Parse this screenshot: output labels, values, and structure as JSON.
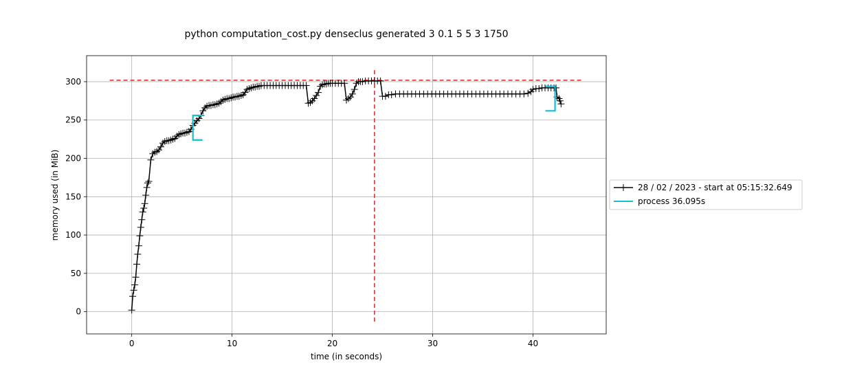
{
  "chart_data": {
    "type": "line",
    "title": "python computation_cost.py denseclus generated 3 0.1 5 5 3 1750",
    "xlabel": "time (in seconds)",
    "ylabel": "memory used (in MiB)",
    "xlim": [
      -4.5,
      47.3
    ],
    "ylim": [
      -29,
      334
    ],
    "xticks": [
      0,
      10,
      20,
      30,
      40
    ],
    "yticks": [
      0,
      50,
      100,
      150,
      200,
      250,
      300
    ],
    "grid": true,
    "legend": {
      "placement": "outside-right",
      "entries": [
        {
          "label": "28 / 02 / 2023 - start at 05:15:32.649",
          "color": "#000000",
          "marker": "+"
        },
        {
          "label": "process 36.095s",
          "color": "#17becf",
          "marker": ""
        }
      ]
    },
    "series": [
      {
        "name": "28 / 02 / 2023 - start at 05:15:32.649",
        "color": "#000000",
        "marker": "+",
        "points": [
          [
            0.0,
            2
          ],
          [
            0.1,
            20
          ],
          [
            0.2,
            28
          ],
          [
            0.3,
            35
          ],
          [
            0.4,
            45
          ],
          [
            0.5,
            62
          ],
          [
            0.6,
            75
          ],
          [
            0.7,
            86
          ],
          [
            0.8,
            99
          ],
          [
            0.9,
            110
          ],
          [
            1.0,
            120
          ],
          [
            1.1,
            130
          ],
          [
            1.2,
            135
          ],
          [
            1.3,
            141
          ],
          [
            1.4,
            152
          ],
          [
            1.5,
            162
          ],
          [
            1.6,
            168
          ],
          [
            1.7,
            170
          ],
          [
            1.9,
            198
          ],
          [
            2.1,
            206
          ],
          [
            2.3,
            208
          ],
          [
            2.5,
            209
          ],
          [
            2.7,
            211
          ],
          [
            2.9,
            215
          ],
          [
            3.1,
            220
          ],
          [
            3.3,
            222
          ],
          [
            3.5,
            223
          ],
          [
            3.7,
            223
          ],
          [
            3.9,
            224
          ],
          [
            4.1,
            225
          ],
          [
            4.3,
            226
          ],
          [
            4.5,
            229
          ],
          [
            4.7,
            231
          ],
          [
            4.9,
            232
          ],
          [
            5.1,
            233
          ],
          [
            5.3,
            233
          ],
          [
            5.5,
            234
          ],
          [
            5.7,
            235
          ],
          [
            5.9,
            238
          ],
          [
            6.1,
            243
          ],
          [
            6.3,
            246
          ],
          [
            6.5,
            249
          ],
          [
            6.7,
            252
          ],
          [
            6.9,
            256
          ],
          [
            7.1,
            262
          ],
          [
            7.3,
            266
          ],
          [
            7.5,
            268
          ],
          [
            7.7,
            269
          ],
          [
            7.9,
            269
          ],
          [
            8.1,
            270
          ],
          [
            8.3,
            270
          ],
          [
            8.5,
            271
          ],
          [
            8.7,
            272
          ],
          [
            8.9,
            274
          ],
          [
            9.1,
            276
          ],
          [
            9.3,
            277
          ],
          [
            9.5,
            278
          ],
          [
            9.7,
            278
          ],
          [
            9.9,
            279
          ],
          [
            10.1,
            280
          ],
          [
            10.3,
            280
          ],
          [
            10.5,
            281
          ],
          [
            10.7,
            281
          ],
          [
            10.9,
            282
          ],
          [
            11.1,
            283
          ],
          [
            11.3,
            286
          ],
          [
            11.5,
            290
          ],
          [
            11.7,
            291
          ],
          [
            11.9,
            292
          ],
          [
            12.1,
            293
          ],
          [
            12.3,
            293
          ],
          [
            12.5,
            294
          ],
          [
            12.7,
            294
          ],
          [
            12.9,
            295
          ],
          [
            13.2,
            295
          ],
          [
            13.5,
            295
          ],
          [
            13.8,
            295
          ],
          [
            14.1,
            295
          ],
          [
            14.4,
            295
          ],
          [
            14.7,
            295
          ],
          [
            15.0,
            295
          ],
          [
            15.3,
            295
          ],
          [
            15.6,
            295
          ],
          [
            15.9,
            295
          ],
          [
            16.2,
            295
          ],
          [
            16.5,
            295
          ],
          [
            16.8,
            295
          ],
          [
            17.1,
            295
          ],
          [
            17.4,
            295
          ],
          [
            17.6,
            272
          ],
          [
            17.8,
            273
          ],
          [
            18.0,
            275
          ],
          [
            18.2,
            278
          ],
          [
            18.4,
            282
          ],
          [
            18.6,
            286
          ],
          [
            18.8,
            294
          ],
          [
            19.0,
            296
          ],
          [
            19.2,
            297
          ],
          [
            19.4,
            297
          ],
          [
            19.6,
            298
          ],
          [
            19.8,
            298
          ],
          [
            20.0,
            298
          ],
          [
            20.3,
            298
          ],
          [
            20.6,
            298
          ],
          [
            20.9,
            298
          ],
          [
            21.2,
            298
          ],
          [
            21.4,
            276
          ],
          [
            21.6,
            278
          ],
          [
            21.8,
            280
          ],
          [
            22.0,
            284
          ],
          [
            22.2,
            290
          ],
          [
            22.4,
            298
          ],
          [
            22.6,
            300
          ],
          [
            22.8,
            300
          ],
          [
            23.0,
            300
          ],
          [
            23.3,
            301
          ],
          [
            23.6,
            301
          ],
          [
            23.9,
            301
          ],
          [
            24.2,
            301
          ],
          [
            24.5,
            301
          ],
          [
            24.8,
            301
          ],
          [
            25.0,
            281
          ],
          [
            25.3,
            281
          ],
          [
            25.6,
            283
          ],
          [
            25.9,
            283
          ],
          [
            26.3,
            284
          ],
          [
            26.7,
            284
          ],
          [
            27.1,
            284
          ],
          [
            27.5,
            284
          ],
          [
            27.9,
            284
          ],
          [
            28.3,
            284
          ],
          [
            28.7,
            284
          ],
          [
            29.1,
            284
          ],
          [
            29.5,
            284
          ],
          [
            29.9,
            284
          ],
          [
            30.3,
            284
          ],
          [
            30.7,
            284
          ],
          [
            31.1,
            284
          ],
          [
            31.5,
            284
          ],
          [
            31.9,
            284
          ],
          [
            32.3,
            284
          ],
          [
            32.7,
            284
          ],
          [
            33.1,
            284
          ],
          [
            33.5,
            284
          ],
          [
            33.9,
            284
          ],
          [
            34.3,
            284
          ],
          [
            34.7,
            284
          ],
          [
            35.1,
            284
          ],
          [
            35.5,
            284
          ],
          [
            35.9,
            284
          ],
          [
            36.3,
            284
          ],
          [
            36.7,
            284
          ],
          [
            37.1,
            284
          ],
          [
            37.5,
            284
          ],
          [
            37.9,
            284
          ],
          [
            38.3,
            284
          ],
          [
            38.7,
            284
          ],
          [
            39.1,
            284
          ],
          [
            39.5,
            285
          ],
          [
            39.8,
            287
          ],
          [
            40.0,
            290
          ],
          [
            40.3,
            291
          ],
          [
            40.6,
            291
          ],
          [
            40.9,
            292
          ],
          [
            41.2,
            292
          ],
          [
            41.5,
            292
          ],
          [
            41.8,
            292
          ],
          [
            42.1,
            292
          ],
          [
            42.3,
            292
          ],
          [
            42.4,
            280
          ],
          [
            42.6,
            278
          ],
          [
            42.7,
            275
          ],
          [
            42.8,
            271
          ]
        ]
      }
    ],
    "process_markers": {
      "color": "#17becf",
      "label": "process 36.095s",
      "start": {
        "x": 6.1,
        "y_low": 224,
        "y_high": 256
      },
      "end": {
        "x": 42.2,
        "y_low": 262,
        "y_high": 294
      }
    },
    "max_memory_line": {
      "y": 302,
      "x_from": -2.2,
      "x_to": 45.0,
      "color": "#d62728"
    },
    "max_time_line": {
      "x": 24.2,
      "y_from": -13,
      "y_to": 318,
      "color": "#d62728"
    }
  }
}
